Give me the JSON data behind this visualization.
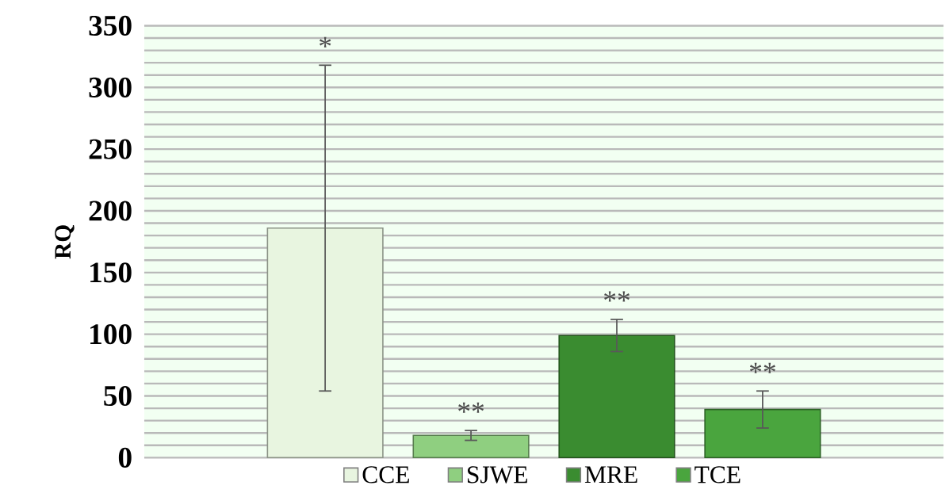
{
  "chart_data": {
    "type": "bar",
    "ylabel": "RQ",
    "categories": [
      null
    ],
    "series": [
      {
        "name": "CCE",
        "color": "#e8f5e0",
        "values": [
          186
        ],
        "errors": [
          132
        ]
      },
      {
        "name": "SJWE",
        "color": "#8fcf80",
        "values": [
          18
        ],
        "errors": [
          4
        ]
      },
      {
        "name": "MRE",
        "color": "#3a8c30",
        "values": [
          99
        ],
        "errors": [
          13
        ]
      },
      {
        "name": "TCE",
        "color": "#4aa53e",
        "values": [
          39
        ],
        "errors": [
          15
        ]
      }
    ],
    "ylim": [
      0,
      350
    ],
    "yticks": [
      0,
      {
        "value": 10,
        "label": null
      },
      {
        "value": 20,
        "label": null
      },
      {
        "value": 30,
        "label": null
      },
      {
        "value": 40,
        "label": null
      },
      50,
      {
        "value": 60,
        "label": null
      },
      {
        "value": 70,
        "label": null
      },
      {
        "value": 80,
        "label": null
      },
      {
        "value": 90,
        "label": null
      },
      100,
      {
        "value": 110,
        "label": null
      },
      {
        "value": 120,
        "label": null
      },
      {
        "value": 130,
        "label": null
      },
      {
        "value": 140,
        "label": null
      },
      150,
      {
        "value": 160,
        "label": null
      },
      {
        "value": 170,
        "label": null
      },
      {
        "value": 180,
        "label": null
      },
      {
        "value": 190,
        "label": null
      },
      200,
      {
        "value": 210,
        "label": null
      },
      {
        "value": 220,
        "label": null
      },
      {
        "value": 230,
        "label": null
      },
      {
        "value": 240,
        "label": null
      },
      250,
      {
        "value": 260,
        "label": null
      },
      {
        "value": 270,
        "label": null
      },
      {
        "value": 280,
        "label": null
      },
      {
        "value": 290,
        "label": null
      },
      300,
      {
        "value": 310,
        "label": null
      },
      {
        "value": 320,
        "label": null
      },
      {
        "value": 330,
        "label": null
      },
      {
        "value": 340,
        "label": null
      },
      350
    ],
    "annotations": [
      "*",
      "**",
      "**",
      "**"
    ],
    "grid": true,
    "legend": "bottom"
  }
}
